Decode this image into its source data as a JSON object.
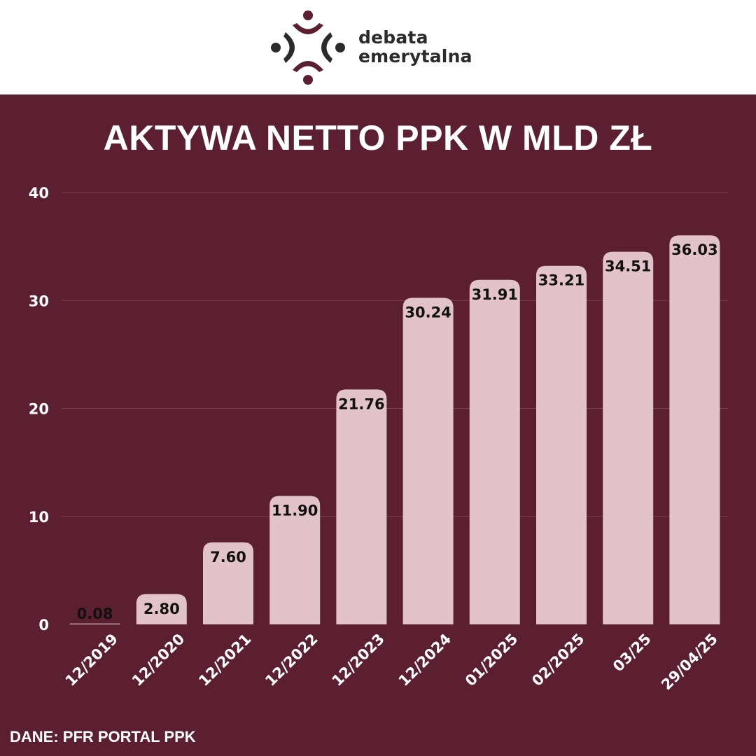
{
  "brand": {
    "name_line1": "debata",
    "name_line2": "emerytalna",
    "logo_icon": "four-figures-circle-logo-icon",
    "colors": {
      "dark": "#2b2b2b",
      "accent": "#5b1f31"
    }
  },
  "colors": {
    "background": "#5b1f31",
    "bar": "#e3c3ca",
    "gridline": "#7a3f50",
    "text": "#ffffff",
    "label_text": "#111111"
  },
  "chart_data": {
    "type": "bar",
    "title": "AKTYWA NETTO PPK W MLD ZŁ",
    "categories": [
      "12/2019",
      "12/2020",
      "12/2021",
      "12/2022",
      "12/2023",
      "12/2024",
      "01/2025",
      "02/2025",
      "03/25",
      "29/04/25"
    ],
    "values": [
      0.08,
      2.8,
      7.6,
      11.9,
      21.76,
      30.24,
      31.91,
      33.21,
      34.51,
      36.03
    ],
    "value_labels": [
      "0.08",
      "2.80",
      "7.60",
      "11.90",
      "21.76",
      "30.24",
      "31.91",
      "33.21",
      "34.51",
      "36.03"
    ],
    "yticks": [
      "0",
      "10",
      "20",
      "30",
      "40"
    ],
    "ylim": [
      0,
      40
    ],
    "xlabel": "",
    "ylabel": "",
    "grid": true,
    "legend": "none"
  },
  "source": "DANE: PFR PORTAL PPK"
}
